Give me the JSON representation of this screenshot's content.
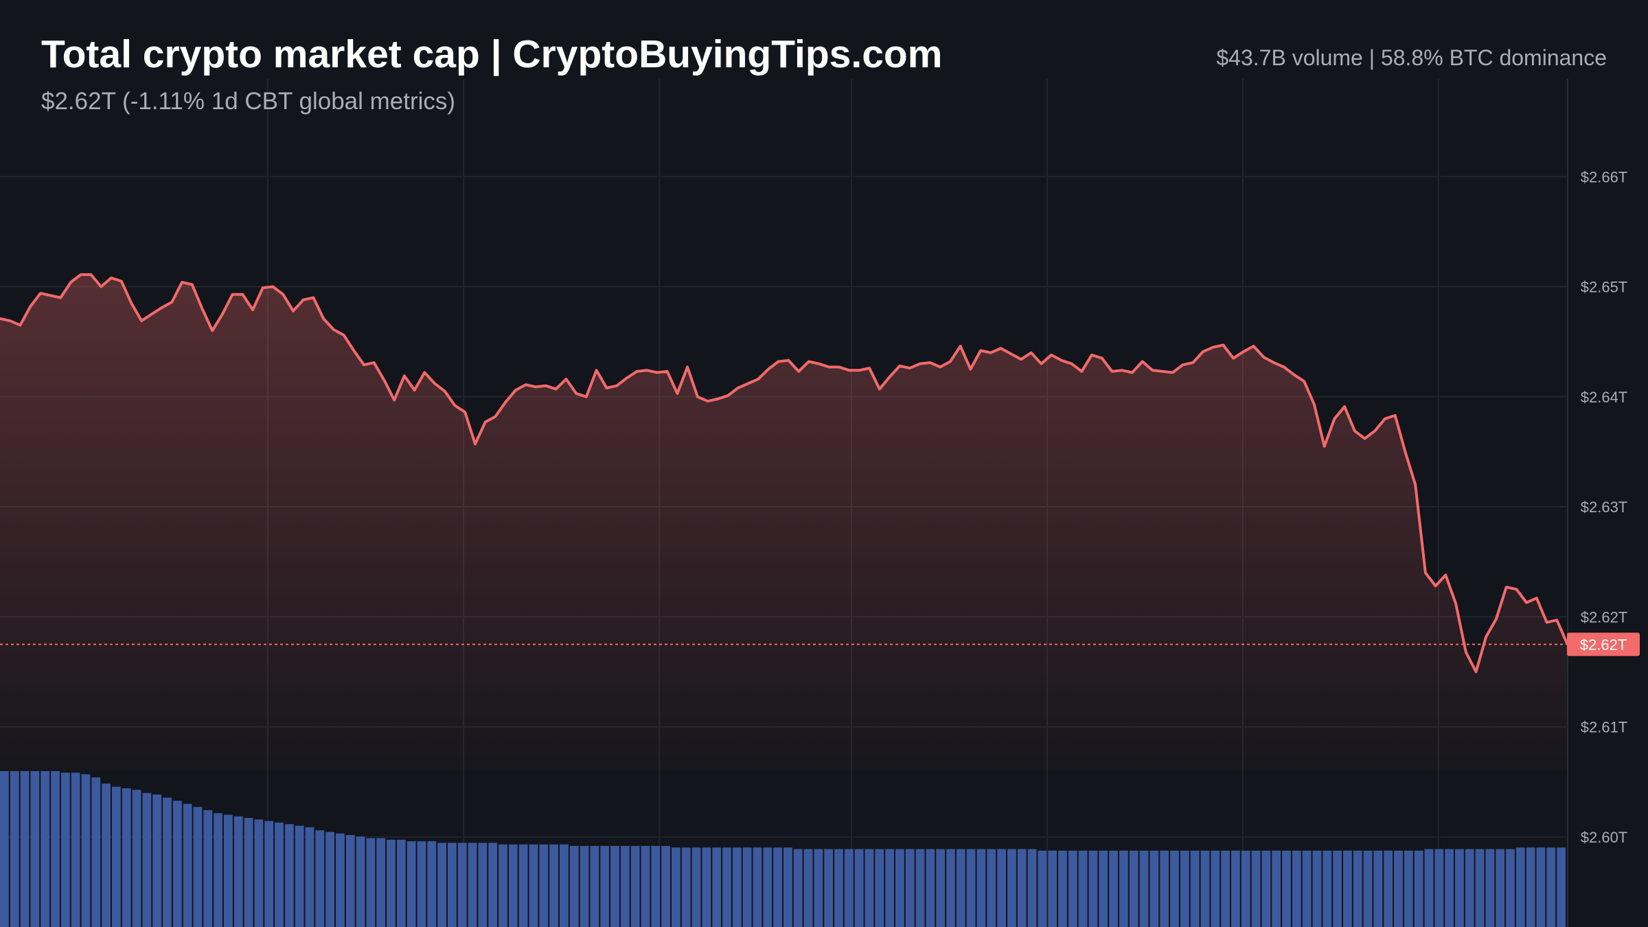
{
  "header": {
    "title": "Total crypto market cap | CryptoBuyingTips.com",
    "subtitle": "$2.62T (-1.11% 1d CBT global metrics)",
    "stats": "$43.7B volume | 58.8% BTC dominance"
  },
  "colors": {
    "background": "#12151b",
    "line": "#f26a6a",
    "volume": "#3d5a9e",
    "grid": "#20242c",
    "axis_text": "#a9adb6",
    "price_tag": "#f26a6a"
  },
  "chart_data": {
    "type": "area",
    "title": "Total crypto market cap | CryptoBuyingTips.com",
    "xlabel": "",
    "ylabel": "",
    "y_unit": "trillion USD",
    "ylim": [
      2.594,
      2.6695
    ],
    "y_ticks": [
      2.66,
      2.65,
      2.64,
      2.63,
      2.62,
      2.61,
      2.6
    ],
    "y_tick_labels": [
      "$2.66T",
      "$2.65T",
      "$2.64T",
      "$2.63T",
      "$2.62T",
      "$2.61T",
      "$2.60T"
    ],
    "grid": true,
    "current_value": 2.6175,
    "current_label": "$2.62T",
    "series": [
      {
        "kind": "line",
        "values": [
          2.6471,
          2.6469,
          2.6465,
          2.6482,
          2.6494,
          2.6492,
          2.649,
          2.6504,
          2.6511,
          2.6511,
          2.65,
          2.6508,
          2.6505,
          2.6485,
          2.6469,
          2.6475,
          2.6481,
          2.6486,
          2.6504,
          2.6502,
          2.648,
          2.646,
          2.6475,
          2.6493,
          2.6493,
          2.6479,
          2.6499,
          2.65,
          2.6493,
          2.6478,
          2.6488,
          2.649,
          2.6471,
          2.6461,
          2.6456,
          2.6442,
          2.6429,
          2.6431,
          2.6415,
          2.6397,
          2.6419,
          2.6406,
          2.6422,
          2.6412,
          2.6405,
          2.6392,
          2.6386,
          2.6357,
          2.6377,
          2.6382,
          2.6395,
          2.6406,
          2.6411,
          2.6409,
          2.641,
          2.6407,
          2.6416,
          2.6403,
          2.64,
          2.6424,
          2.6408,
          2.641,
          2.6417,
          2.6423,
          2.6424,
          2.6422,
          2.6423,
          2.6403,
          2.6427,
          2.64,
          2.6396,
          2.6398,
          2.6401,
          2.6408,
          2.6412,
          2.6416,
          2.6425,
          2.6432,
          2.6433,
          2.6423,
          2.6432,
          2.643,
          2.6427,
          2.6427,
          2.6424,
          2.6424,
          2.6426,
          2.6407,
          2.6418,
          2.6428,
          2.6426,
          2.643,
          2.6431,
          2.6427,
          2.6432,
          2.6446,
          2.6425,
          2.6442,
          2.644,
          2.6444,
          2.6439,
          2.6434,
          2.644,
          2.643,
          2.6438,
          2.6433,
          2.643,
          2.6423,
          2.6438,
          2.6435,
          2.6423,
          2.6424,
          2.6422,
          2.6432,
          2.6424,
          2.6423,
          2.6422,
          2.6429,
          2.6431,
          2.6441,
          2.6445,
          2.6447,
          2.6435,
          2.6441,
          2.6446,
          2.6436,
          2.6431,
          2.6427,
          2.642,
          2.6414,
          2.6393,
          2.6355,
          2.638,
          2.6391,
          2.6369,
          2.6362,
          2.6369,
          2.638,
          2.6383,
          2.635,
          2.632,
          2.624,
          2.6228,
          2.6238,
          2.6212,
          2.6168,
          2.615,
          2.6182,
          2.6198,
          2.6227,
          2.6225,
          2.6213,
          2.6217,
          2.6195,
          2.6197,
          2.6176
        ]
      },
      {
        "kind": "volume",
        "values": [
          100,
          100,
          100,
          100,
          100,
          100,
          99,
          99,
          98,
          96,
          92,
          90,
          89,
          88,
          86,
          85,
          83,
          81,
          79,
          77,
          75,
          73,
          72,
          71,
          70,
          69,
          68,
          67,
          66,
          65,
          64,
          62,
          61,
          60,
          59,
          58,
          57,
          57,
          56,
          56,
          55,
          55,
          55,
          54,
          54,
          54,
          54,
          54,
          54,
          53,
          53,
          53,
          53,
          53,
          53,
          53,
          52,
          52,
          52,
          52,
          52,
          52,
          52,
          52,
          52,
          52,
          51,
          51,
          51,
          51,
          51,
          51,
          51,
          51,
          51,
          51,
          51,
          51,
          50,
          50,
          50,
          50,
          50,
          50,
          50,
          50,
          50,
          50,
          50,
          50,
          50,
          50,
          50,
          50,
          50,
          50,
          50,
          50,
          50,
          50,
          50,
          50,
          49,
          49,
          49,
          49,
          49,
          49,
          49,
          49,
          49,
          49,
          49,
          49,
          49,
          49,
          49,
          49,
          49,
          49,
          49,
          49,
          49,
          49,
          49,
          49,
          49,
          49,
          49,
          49,
          49,
          49,
          49,
          49,
          49,
          49,
          49,
          49,
          49,
          49,
          50,
          50,
          50,
          50,
          50,
          50,
          50,
          50,
          50,
          51,
          51,
          51,
          51,
          51
        ]
      }
    ]
  }
}
